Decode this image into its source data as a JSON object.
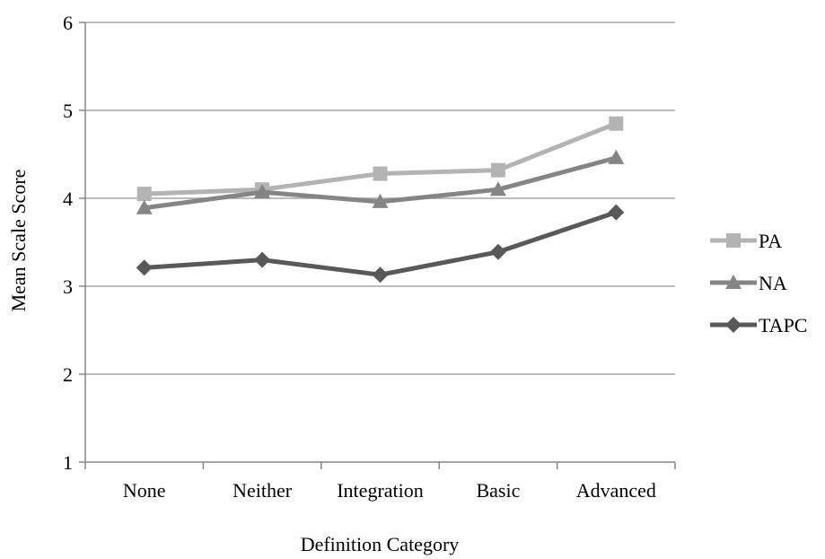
{
  "chart_data": {
    "type": "line",
    "categories": [
      "None",
      "Neither",
      "Integration",
      "Basic",
      "Advanced"
    ],
    "series": [
      {
        "name": "PA",
        "values": [
          4.05,
          4.1,
          4.28,
          4.32,
          4.85
        ],
        "color": "#b3b3b3",
        "marker": "square"
      },
      {
        "name": "NA",
        "values": [
          3.89,
          4.07,
          3.96,
          4.1,
          4.46
        ],
        "color": "#858585",
        "marker": "triangle"
      },
      {
        "name": "TAPC",
        "values": [
          3.21,
          3.3,
          3.13,
          3.39,
          3.84
        ],
        "color": "#595959",
        "marker": "diamond"
      }
    ],
    "title": "",
    "xlabel": "Definition Category",
    "ylabel": "Mean Scale Score",
    "ylim": [
      1,
      6
    ],
    "yticks": [
      "1",
      "2",
      "3",
      "4",
      "5",
      "6"
    ],
    "grid": true,
    "legend": "right",
    "gridline_color": "#a6a6a6",
    "axis_color": "#868686"
  }
}
